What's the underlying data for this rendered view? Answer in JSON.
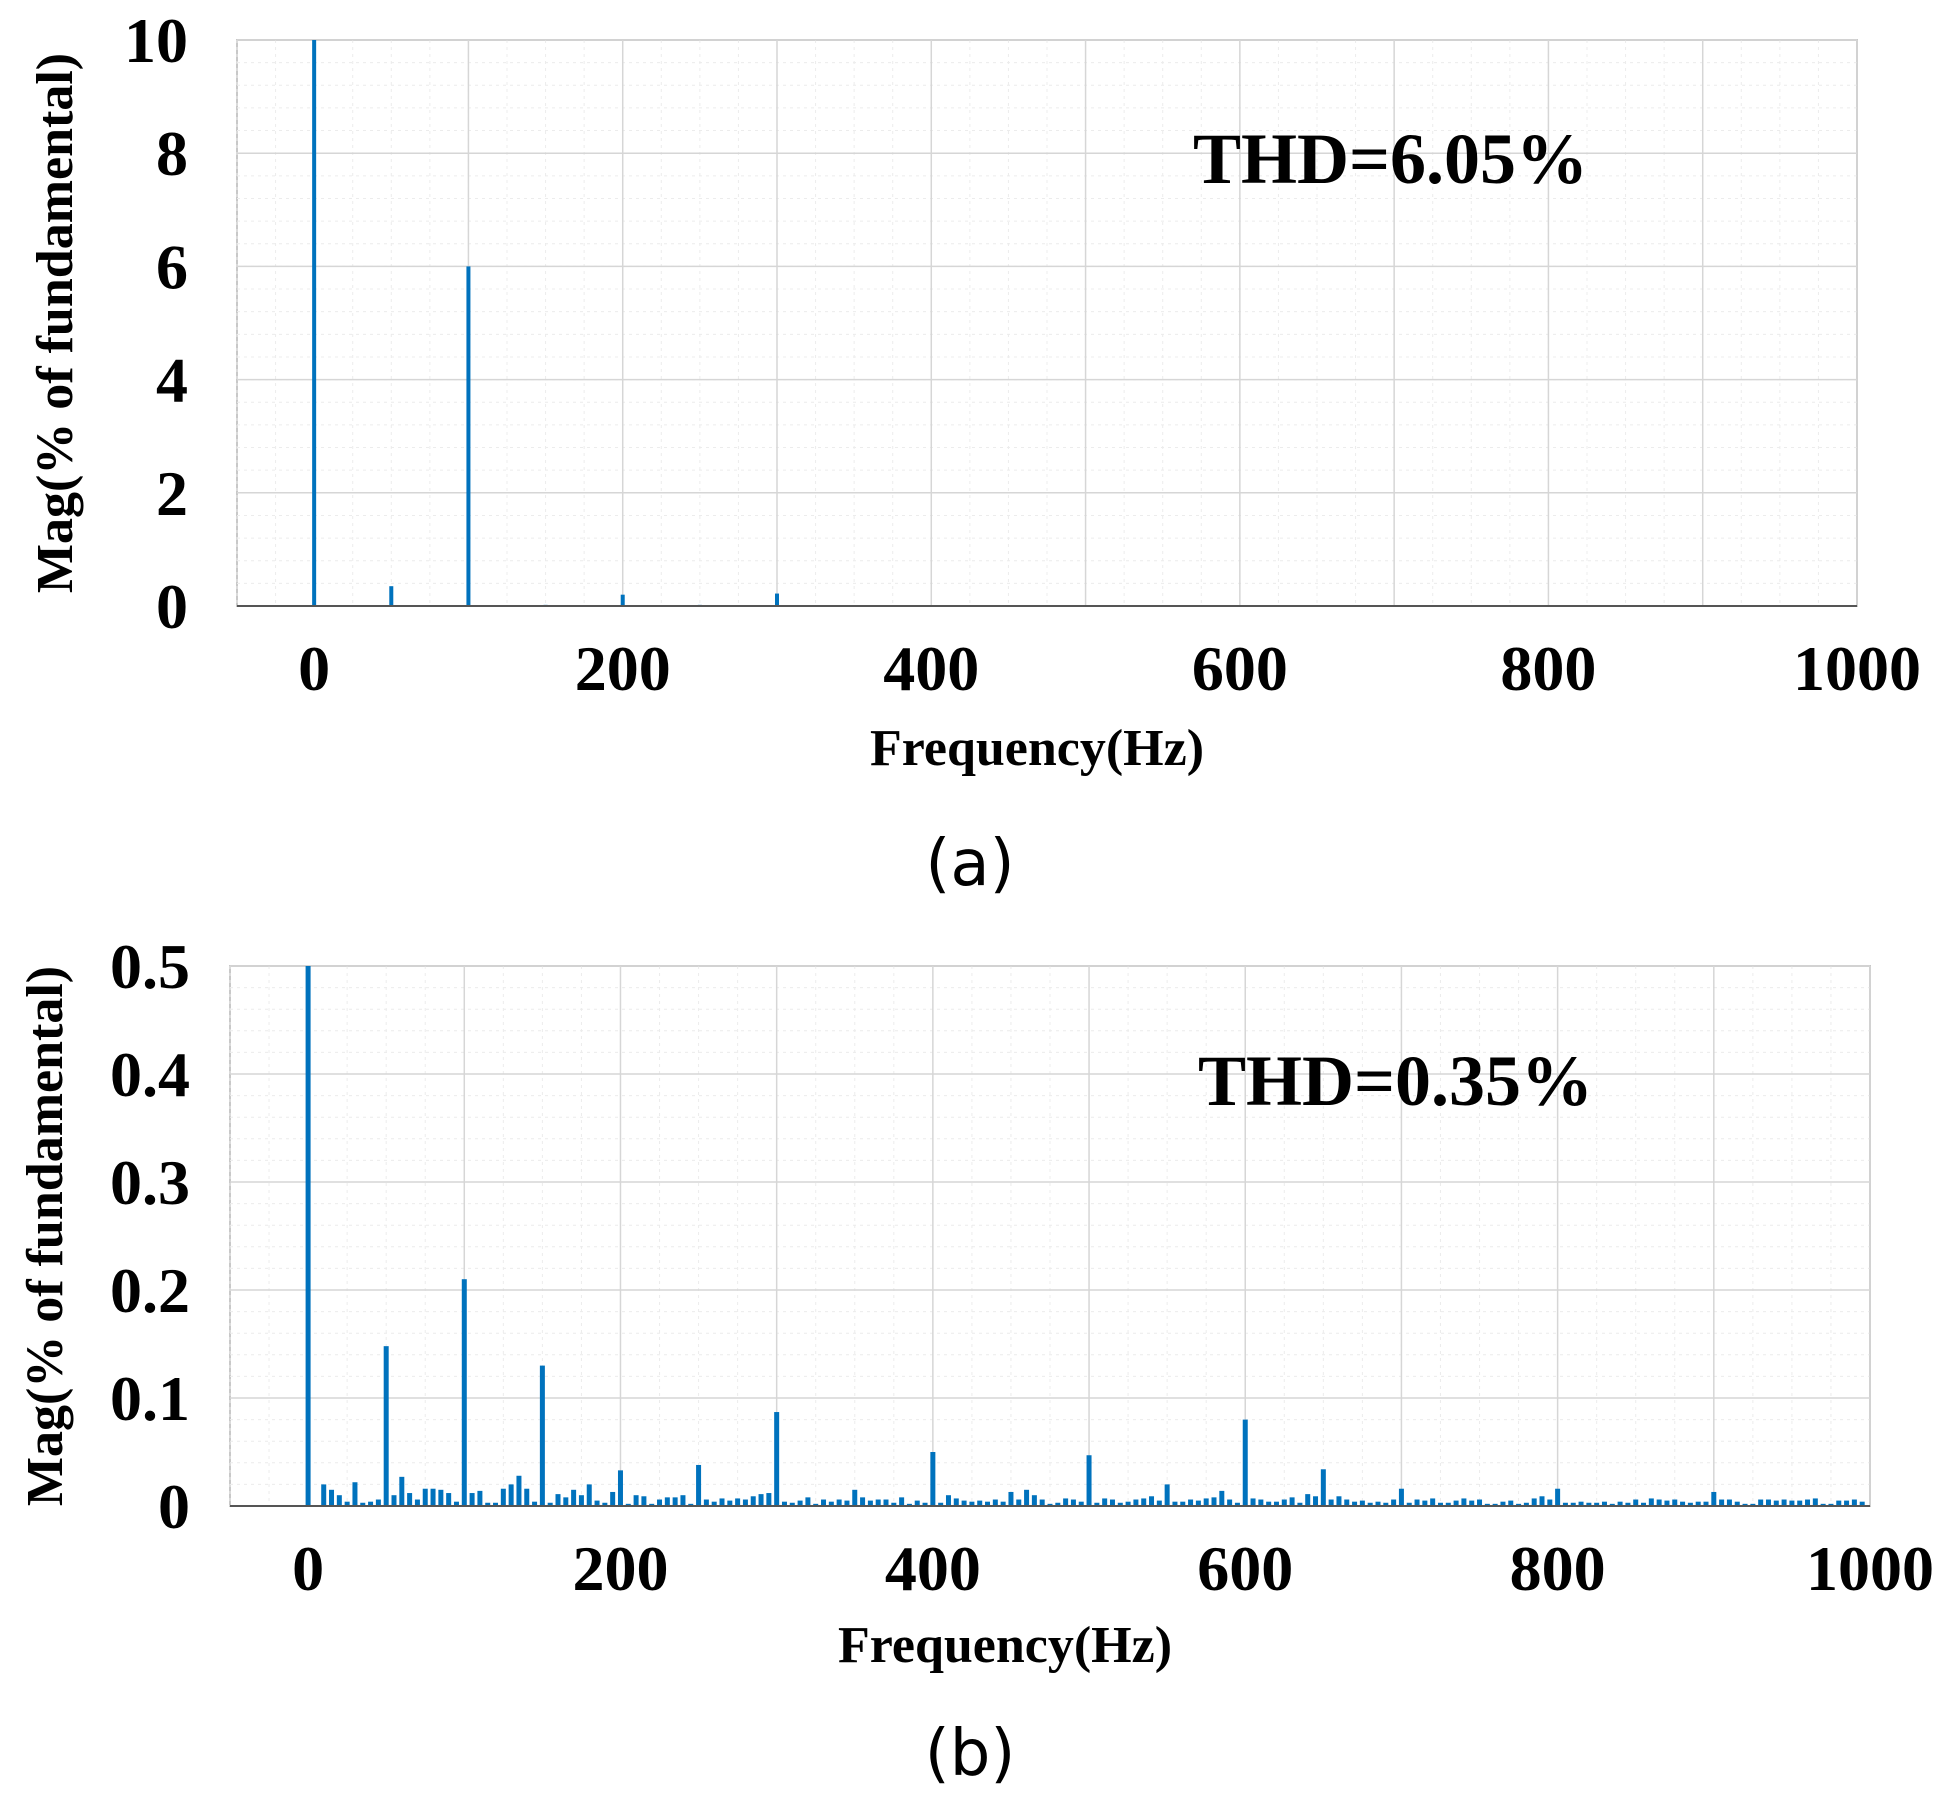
{
  "chart_data": [
    {
      "type": "bar",
      "panel_label": "(a)",
      "title": "",
      "xlabel": "Frequency(Hz)",
      "ylabel": "Mag(% of fundamental)",
      "xlim": [
        -50,
        1000
      ],
      "ylim": [
        0,
        10
      ],
      "xticks": [
        0,
        200,
        400,
        600,
        800,
        1000
      ],
      "yticks": [
        0,
        2,
        4,
        6,
        8,
        10
      ],
      "grid": true,
      "annotation": "THD=6.05%",
      "series_color": "#0072BD",
      "x": [
        0,
        50,
        100,
        150,
        200,
        250,
        300
      ],
      "values": [
        10,
        0.35,
        6.0,
        0.02,
        0.2,
        0.02,
        0.22
      ]
    },
    {
      "type": "bar",
      "panel_label": "(b)",
      "title": "",
      "xlabel": "Frequency(Hz)",
      "ylabel": "Mag(% of fundamental)",
      "xlim": [
        -50,
        1000
      ],
      "ylim": [
        0,
        0.5
      ],
      "xticks": [
        0,
        200,
        400,
        600,
        800,
        1000
      ],
      "yticks": [
        0,
        0.1,
        0.2,
        0.3,
        0.4,
        0.5
      ],
      "ytick_labels": [
        "0",
        "0.1",
        "0.2",
        "0.3",
        "0.4",
        "0.5"
      ],
      "grid": true,
      "annotation": "THD=0.35%",
      "series_color": "#0072BD",
      "x": [
        0,
        10,
        15,
        20,
        25,
        30,
        35,
        40,
        45,
        50,
        55,
        60,
        65,
        70,
        75,
        80,
        85,
        90,
        95,
        100,
        105,
        110,
        115,
        120,
        125,
        130,
        135,
        140,
        145,
        150,
        155,
        160,
        165,
        170,
        175,
        180,
        185,
        190,
        195,
        200,
        205,
        210,
        215,
        220,
        225,
        230,
        235,
        240,
        245,
        250,
        255,
        260,
        265,
        270,
        275,
        280,
        285,
        290,
        295,
        300,
        305,
        310,
        315,
        320,
        325,
        330,
        335,
        340,
        345,
        350,
        355,
        360,
        365,
        370,
        375,
        380,
        385,
        390,
        395,
        400,
        405,
        410,
        415,
        420,
        425,
        430,
        435,
        440,
        445,
        450,
        455,
        460,
        465,
        470,
        475,
        480,
        485,
        490,
        495,
        500,
        505,
        510,
        515,
        520,
        525,
        530,
        535,
        540,
        545,
        550,
        555,
        560,
        565,
        570,
        575,
        580,
        585,
        590,
        595,
        600,
        605,
        610,
        615,
        620,
        625,
        630,
        635,
        640,
        645,
        650,
        655,
        660,
        665,
        670,
        675,
        680,
        685,
        690,
        695,
        700,
        705,
        710,
        715,
        720,
        725,
        730,
        735,
        740,
        745,
        750,
        755,
        760,
        765,
        770,
        775,
        780,
        785,
        790,
        795,
        800,
        805,
        810,
        815,
        820,
        825,
        830,
        835,
        840,
        845,
        850,
        855,
        860,
        865,
        870,
        875,
        880,
        885,
        890,
        895,
        900,
        905,
        910,
        915,
        920,
        925,
        930,
        935,
        940,
        945,
        950,
        955,
        960,
        965,
        970,
        975,
        980,
        985,
        990,
        995
      ],
      "values": [
        0.5,
        0.02,
        0.015,
        0.01,
        0.004,
        0.022,
        0.003,
        0.004,
        0.006,
        0.148,
        0.01,
        0.027,
        0.012,
        0.006,
        0.016,
        0.016,
        0.015,
        0.012,
        0.004,
        0.21,
        0.012,
        0.014,
        0.003,
        0.003,
        0.016,
        0.02,
        0.028,
        0.016,
        0.004,
        0.13,
        0.003,
        0.011,
        0.008,
        0.015,
        0.01,
        0.02,
        0.005,
        0.003,
        0.013,
        0.033,
        0.002,
        0.01,
        0.009,
        0.002,
        0.006,
        0.008,
        0.008,
        0.01,
        0.002,
        0.038,
        0.006,
        0.004,
        0.007,
        0.005,
        0.007,
        0.006,
        0.009,
        0.011,
        0.012,
        0.087,
        0.004,
        0.003,
        0.005,
        0.008,
        0.002,
        0.006,
        0.004,
        0.006,
        0.005,
        0.015,
        0.008,
        0.005,
        0.006,
        0.006,
        0.003,
        0.008,
        0.002,
        0.005,
        0.003,
        0.05,
        0.003,
        0.01,
        0.007,
        0.005,
        0.004,
        0.005,
        0.004,
        0.006,
        0.004,
        0.013,
        0.006,
        0.015,
        0.01,
        0.006,
        0.002,
        0.003,
        0.007,
        0.006,
        0.004,
        0.047,
        0.003,
        0.007,
        0.006,
        0.003,
        0.004,
        0.006,
        0.007,
        0.009,
        0.005,
        0.02,
        0.004,
        0.004,
        0.006,
        0.005,
        0.007,
        0.008,
        0.014,
        0.006,
        0.003,
        0.08,
        0.007,
        0.006,
        0.004,
        0.004,
        0.006,
        0.008,
        0.003,
        0.011,
        0.009,
        0.034,
        0.006,
        0.009,
        0.006,
        0.004,
        0.005,
        0.003,
        0.004,
        0.003,
        0.006,
        0.016,
        0.003,
        0.006,
        0.005,
        0.007,
        0.003,
        0.003,
        0.005,
        0.007,
        0.005,
        0.006,
        0.002,
        0.002,
        0.004,
        0.005,
        0.002,
        0.003,
        0.007,
        0.009,
        0.006,
        0.016,
        0.003,
        0.003,
        0.004,
        0.003,
        0.003,
        0.004,
        0.002,
        0.004,
        0.003,
        0.006,
        0.003,
        0.007,
        0.006,
        0.005,
        0.006,
        0.004,
        0.003,
        0.004,
        0.004,
        0.013,
        0.006,
        0.006,
        0.004,
        0.002,
        0.002,
        0.006,
        0.006,
        0.005,
        0.006,
        0.005,
        0.005,
        0.006,
        0.007,
        0.002,
        0.002,
        0.005,
        0.005,
        0.006,
        0.004
      ]
    }
  ]
}
